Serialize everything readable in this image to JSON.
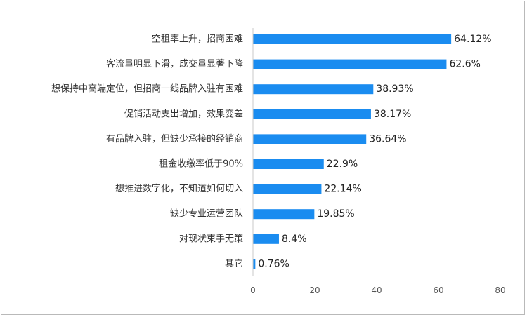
{
  "chart_data": {
    "type": "bar",
    "orientation": "horizontal",
    "categories": [
      "空租率上升，招商困难",
      "客流量明显下滑，成交量显著下降",
      "想保持中高端定位，但招商一线品牌入驻有困难",
      "促销活动支出增加，效果变差",
      "有品牌入驻，但缺少承接的经销商",
      "租金收缴率低于90%",
      "想推进数字化，不知道如何切入",
      "缺少专业运营团队",
      "对现状束手无策",
      "其它"
    ],
    "values": [
      64.12,
      62.6,
      38.93,
      38.17,
      36.64,
      22.9,
      22.14,
      19.85,
      8.4,
      0.76
    ],
    "value_labels": [
      "64.12%",
      "62.6%",
      "38.93%",
      "38.17%",
      "36.64%",
      "22.9%",
      "22.14%",
      "19.85%",
      "8.4%",
      "0.76%"
    ],
    "xlim": [
      0,
      80
    ],
    "xticks": [
      "0",
      "20",
      "40",
      "60",
      "80"
    ],
    "bar_color": "#1a8cf0",
    "grid": false,
    "legend": false
  }
}
